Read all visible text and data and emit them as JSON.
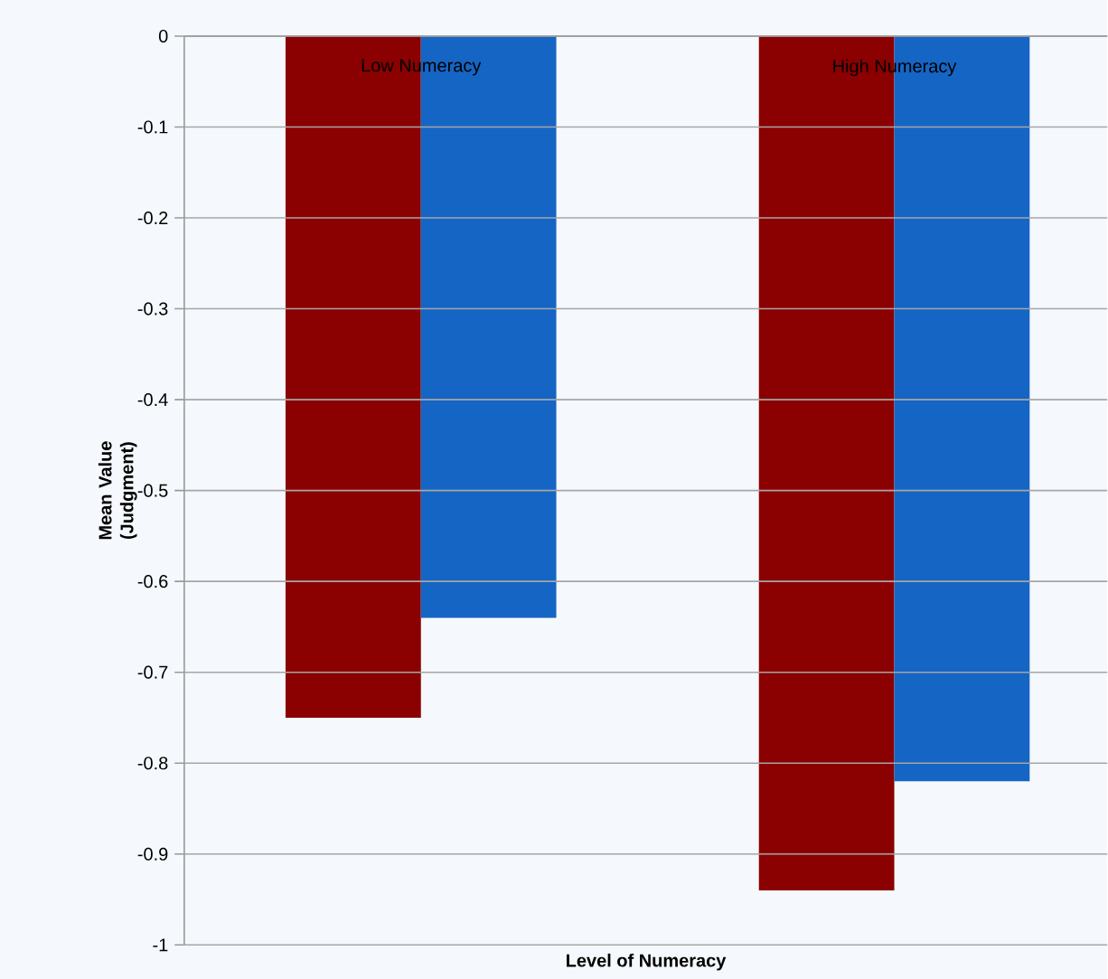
{
  "chart_data": {
    "type": "bar",
    "xlabel": "Level of Numeracy",
    "ylabel": "Mean Value (Judgment)",
    "categories": [
      "Low Numeracy",
      "High Numeracy"
    ],
    "series": [
      {
        "color": "#8b0000",
        "values": [
          -0.75,
          -0.94
        ]
      },
      {
        "color": "#1565c4",
        "values": [
          -0.64,
          -0.82
        ]
      }
    ],
    "ylim": [
      -1,
      0
    ],
    "yticks": [
      0,
      -0.1,
      -0.2,
      -0.3,
      -0.4,
      -0.5,
      -0.6,
      -0.7,
      -0.8,
      -0.9,
      -1
    ],
    "grid": "y"
  }
}
